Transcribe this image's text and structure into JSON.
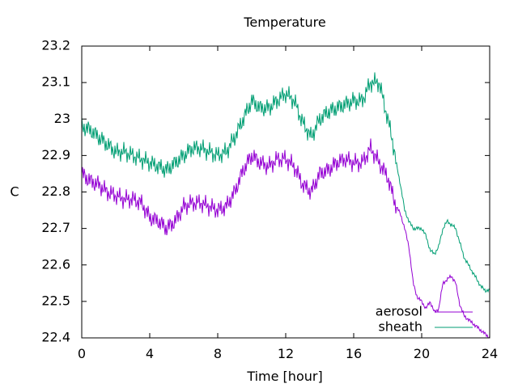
{
  "chart_data": {
    "type": "line",
    "title": "Temperature",
    "xlabel": "Time [hour]",
    "ylabel": "C",
    "xlim": [
      0,
      24
    ],
    "ylim": [
      22.4,
      23.2
    ],
    "xticks": [
      0,
      4,
      8,
      12,
      16,
      20,
      24
    ],
    "yticks": [
      22.4,
      22.5,
      22.6,
      22.7,
      22.8,
      22.9,
      23,
      23.1,
      23.2
    ],
    "ytick_labels": [
      "22.4",
      "22.5",
      "22.6",
      "22.7",
      "22.8",
      "22.9",
      "23",
      "23.1",
      "23.2"
    ],
    "grid": false,
    "legend_position": "bottom-right",
    "series": [
      {
        "name": "aerosol",
        "color": "#9400d3",
        "x": [
          0,
          0.5,
          1,
          1.5,
          2,
          2.5,
          3,
          3.5,
          4,
          4.5,
          5,
          5.5,
          6,
          6.5,
          7,
          7.5,
          8,
          8.5,
          9,
          9.5,
          10,
          10.5,
          11,
          11.5,
          12,
          12.5,
          13,
          13.5,
          14,
          14.5,
          15,
          15.5,
          16,
          16.5,
          17,
          17.5,
          18,
          18.25,
          18.5,
          18.75,
          19,
          19.25,
          19.5,
          19.75,
          20,
          20.25,
          20.5,
          20.75,
          21,
          21.25,
          21.5,
          21.75,
          22,
          22.25,
          22.5,
          22.75,
          23,
          23.25,
          23.5,
          23.75,
          24
        ],
        "y": [
          22.85,
          22.83,
          22.82,
          22.8,
          22.79,
          22.78,
          22.78,
          22.77,
          22.73,
          22.72,
          22.7,
          22.72,
          22.76,
          22.77,
          22.77,
          22.76,
          22.75,
          22.76,
          22.8,
          22.86,
          22.9,
          22.88,
          22.87,
          22.89,
          22.89,
          22.87,
          22.82,
          22.8,
          22.85,
          22.86,
          22.88,
          22.89,
          22.88,
          22.88,
          22.92,
          22.88,
          22.84,
          22.8,
          22.76,
          22.74,
          22.7,
          22.65,
          22.55,
          22.51,
          22.5,
          22.48,
          22.5,
          22.47,
          22.48,
          22.55,
          22.56,
          22.57,
          22.55,
          22.49,
          22.46,
          22.45,
          22.44,
          22.43,
          22.42,
          22.41,
          22.4
        ]
      },
      {
        "name": "sheath",
        "color": "#009e73",
        "x": [
          0,
          0.5,
          1,
          1.5,
          2,
          2.5,
          3,
          3.5,
          4,
          4.5,
          5,
          5.5,
          6,
          6.5,
          7,
          7.5,
          8,
          8.5,
          9,
          9.5,
          10,
          10.5,
          11,
          11.5,
          12,
          12.5,
          13,
          13.5,
          14,
          14.5,
          15,
          15.5,
          16,
          16.5,
          17,
          17.5,
          18,
          18.25,
          18.5,
          18.75,
          19,
          19.25,
          19.5,
          19.75,
          20,
          20.25,
          20.5,
          20.75,
          21,
          21.25,
          21.5,
          21.75,
          22,
          22.25,
          22.5,
          22.75,
          23,
          23.25,
          23.5,
          23.75,
          24
        ],
        "y": [
          22.98,
          22.97,
          22.95,
          22.93,
          22.91,
          22.91,
          22.9,
          22.89,
          22.88,
          22.87,
          22.86,
          22.88,
          22.9,
          22.92,
          22.92,
          22.91,
          22.9,
          22.91,
          22.95,
          23.0,
          23.05,
          23.03,
          23.03,
          23.05,
          23.07,
          23.05,
          22.99,
          22.95,
          23.0,
          23.02,
          23.03,
          23.04,
          23.05,
          23.05,
          23.1,
          23.1,
          23.0,
          22.95,
          22.88,
          22.82,
          22.75,
          22.72,
          22.7,
          22.7,
          22.7,
          22.68,
          22.64,
          22.63,
          22.65,
          22.7,
          22.72,
          22.71,
          22.7,
          22.66,
          22.62,
          22.6,
          22.58,
          22.56,
          22.54,
          22.53,
          22.53
        ]
      }
    ]
  }
}
